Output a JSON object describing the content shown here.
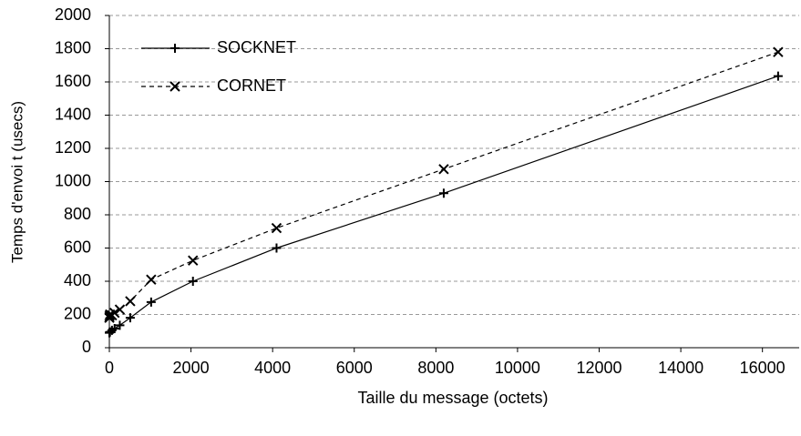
{
  "chart_data": {
    "type": "line",
    "x_label": "Taille du message (octets)",
    "y_label": "Temps d'envoi t (usecs)",
    "x": [
      1,
      4,
      16,
      64,
      128,
      256,
      512,
      1024,
      2048,
      4096,
      8192,
      16384
    ],
    "series": [
      {
        "name": "SOCKNET",
        "color": "#000000",
        "line_style": "solid",
        "marker": "plus",
        "values": [
          90,
          92,
          95,
          105,
          115,
          135,
          180,
          275,
          400,
          600,
          930,
          1635
        ]
      },
      {
        "name": "CORNET",
        "color": "#000000",
        "line_style": "dashed",
        "marker": "x",
        "values": [
          180,
          190,
          200,
          195,
          210,
          230,
          280,
          410,
          525,
          720,
          1075,
          1780
        ]
      }
    ],
    "xlim": [
      0,
      16900
    ],
    "ylim": [
      0,
      2000
    ],
    "xticks": [
      0,
      2000,
      4000,
      6000,
      8000,
      10000,
      12000,
      14000,
      16000
    ],
    "yticks": [
      0,
      200,
      400,
      600,
      800,
      1000,
      1200,
      1400,
      1600,
      1800,
      2000
    ],
    "grid": true,
    "legend": "upper left"
  }
}
